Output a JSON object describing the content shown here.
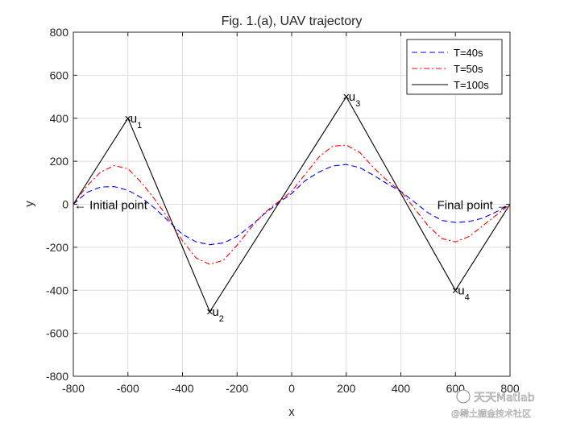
{
  "chart_data": {
    "type": "line",
    "title": "Fig. 1.(a), UAV trajectory",
    "xlabel": "x",
    "ylabel": "y",
    "xlim": [
      -800,
      800
    ],
    "ylim": [
      -800,
      800
    ],
    "xticks": [
      -800,
      -600,
      -400,
      -200,
      0,
      200,
      400,
      600,
      800
    ],
    "yticks": [
      -800,
      -600,
      -400,
      -200,
      0,
      200,
      400,
      600,
      800
    ],
    "grid": true,
    "legend_position": "top-right",
    "series": [
      {
        "name": "T=40s",
        "color": "#0000ff",
        "style": "dashed",
        "x": [
          -800,
          -750,
          -700,
          -650,
          -600,
          -550,
          -500,
          -450,
          -400,
          -350,
          -300,
          -250,
          -200,
          -150,
          -100,
          -50,
          0,
          50,
          100,
          150,
          200,
          250,
          300,
          350,
          400,
          450,
          500,
          550,
          600,
          650,
          700,
          750,
          800
        ],
        "y": [
          0,
          55,
          80,
          82,
          65,
          30,
          -20,
          -80,
          -140,
          -175,
          -188,
          -180,
          -150,
          -100,
          -45,
          5,
          50,
          110,
          150,
          178,
          185,
          170,
          135,
          95,
          60,
          10,
          -40,
          -75,
          -85,
          -80,
          -65,
          -35,
          0
        ]
      },
      {
        "name": "T=50s",
        "color": "#ff0000",
        "style": "dashdot",
        "x": [
          -800,
          -750,
          -700,
          -650,
          -600,
          -550,
          -500,
          -450,
          -400,
          -350,
          -300,
          -250,
          -200,
          -150,
          -100,
          -50,
          0,
          50,
          100,
          150,
          200,
          250,
          300,
          350,
          400,
          450,
          500,
          550,
          600,
          650,
          700,
          750,
          800
        ],
        "y": [
          0,
          85,
          150,
          180,
          165,
          100,
          20,
          -70,
          -170,
          -250,
          -280,
          -260,
          -190,
          -110,
          -40,
          10,
          60,
          140,
          220,
          270,
          275,
          240,
          170,
          110,
          60,
          -20,
          -100,
          -160,
          -175,
          -150,
          -100,
          -50,
          0
        ]
      },
      {
        "name": "T=100s",
        "color": "#000000",
        "style": "solid",
        "x": [
          -800,
          -600,
          -300,
          200,
          600,
          800
        ],
        "y": [
          0,
          400,
          -500,
          500,
          -400,
          0
        ]
      }
    ],
    "annotations": [
      {
        "text": "u",
        "sub": "1",
        "x": -600,
        "y": 400
      },
      {
        "text": "u",
        "sub": "2",
        "x": -300,
        "y": -500
      },
      {
        "text": "u",
        "sub": "3",
        "x": 200,
        "y": 500
      },
      {
        "text": "u",
        "sub": "4",
        "x": 600,
        "y": -400
      },
      {
        "text": "← Initial point",
        "x": -800,
        "y": 0
      },
      {
        "text": "Final point →",
        "x": 800,
        "y": 0
      }
    ]
  },
  "watermark": {
    "line1": "天天Matlab",
    "line2": "@稀土掘金技术社区"
  }
}
